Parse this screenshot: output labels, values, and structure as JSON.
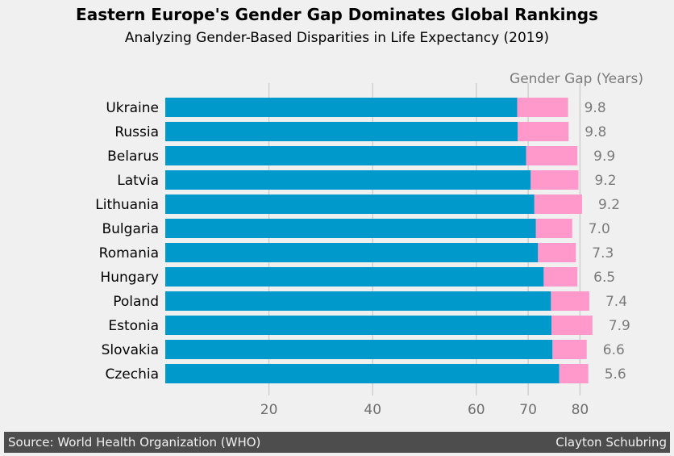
{
  "title": "Eastern Europe's Gender Gap Dominates Global Rankings",
  "subtitle": "Analyzing Gender-Based Disparities in Life Expectancy (2019)",
  "footer": {
    "source": "Source: World Health Organization (WHO)",
    "author": "Clayton Schubring"
  },
  "colors": {
    "male": "#0099cc",
    "female": "#ff99cc",
    "gap_text": "#7a7a7a",
    "grid": "#cbcbcb",
    "background": "#f0f0f0"
  },
  "chart_data": {
    "type": "bar",
    "orientation": "horizontal",
    "stacked": true,
    "categories": [
      "Ukraine",
      "Russia",
      "Belarus",
      "Latvia",
      "Lithuania",
      "Bulgaria",
      "Romania",
      "Hungary",
      "Poland",
      "Estonia",
      "Slovakia",
      "Czechia"
    ],
    "series": [
      {
        "values": [
          67.9,
          68.0,
          69.6,
          70.5,
          71.2,
          71.5,
          71.9,
          73.0,
          74.4,
          74.5,
          74.7,
          76.0
        ]
      },
      {
        "values": [
          9.8,
          9.8,
          9.9,
          9.2,
          9.2,
          7.0,
          7.3,
          6.5,
          7.4,
          7.9,
          6.6,
          5.6
        ]
      }
    ],
    "gap_label": "Gender Gap (Years)",
    "gap_values": [
      "9.8",
      "9.8",
      "9.9",
      "9.2",
      "9.2",
      "7.0",
      "7.3",
      "6.5",
      "7.4",
      "7.9",
      "6.6",
      "5.6"
    ],
    "x_ticks": [
      20,
      40,
      60,
      70,
      80
    ],
    "xlim": [
      0,
      83
    ],
    "grid": true
  }
}
